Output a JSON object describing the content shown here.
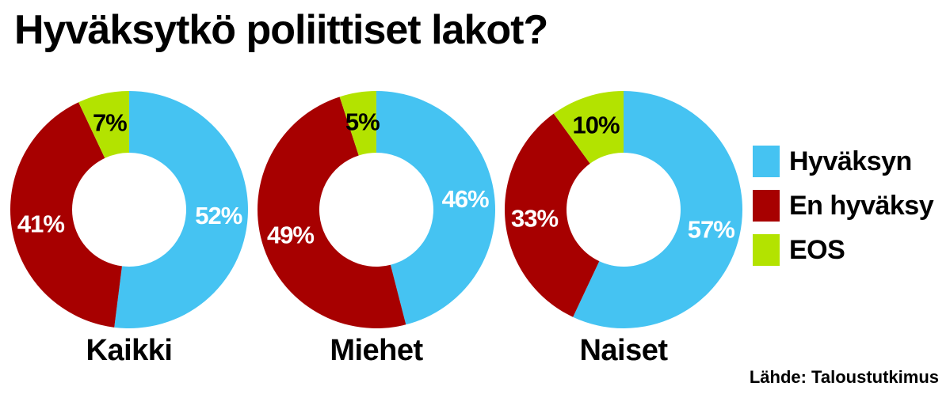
{
  "chart_data": {
    "type": "pie",
    "title": "Hyväksytkö poliittiset lakot?",
    "categories": [
      "Hyväksyn",
      "En hyväksy",
      "EOS"
    ],
    "colors": [
      "#45c3f2",
      "#a70000",
      "#b3e300"
    ],
    "series": [
      {
        "name": "Kaikki",
        "values": [
          52,
          41,
          7
        ],
        "labels": [
          "52%",
          "41%",
          "7%"
        ]
      },
      {
        "name": "Miehet",
        "values": [
          46,
          49,
          5
        ],
        "labels": [
          "46%",
          "49%",
          "5%"
        ]
      },
      {
        "name": "Naiset",
        "values": [
          57,
          33,
          10
        ],
        "labels": [
          "57%",
          "33%",
          "10%"
        ]
      }
    ],
    "legend_position": "right",
    "source": "Lähde: Taloustutkimus"
  }
}
